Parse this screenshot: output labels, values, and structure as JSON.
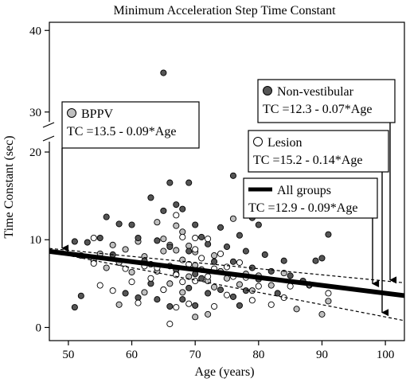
{
  "chart_data": {
    "type": "scatter",
    "title": "Minimum Acceleration Step Time Constant",
    "xlabel": "Age (years)",
    "ylabel": "Time Constant (sec)",
    "xlim": [
      47,
      103
    ],
    "ylim": [
      -1.5,
      41
    ],
    "axis_break": {
      "lower_max": 21,
      "upper_min": 29
    },
    "x_ticks": [
      50,
      60,
      70,
      80,
      90,
      100
    ],
    "x_tick_labels": [
      "50",
      "60",
      "70",
      "80",
      "90",
      "100"
    ],
    "y_ticks": [
      0,
      10,
      20,
      30,
      40
    ],
    "y_tick_labels": [
      "0",
      "10",
      "20",
      "30",
      "40"
    ],
    "grid": false,
    "series": [
      {
        "name": "BPPV",
        "marker": "circle",
        "fill": "#bfbfbf",
        "points": [
          [
            52,
            8.2
          ],
          [
            54,
            7.6
          ],
          [
            55,
            8.4
          ],
          [
            56,
            6.8
          ],
          [
            57,
            9.4
          ],
          [
            58,
            7.4
          ],
          [
            59,
            8.9
          ],
          [
            60,
            6.3
          ],
          [
            61,
            9.8
          ],
          [
            62,
            8.1
          ],
          [
            63,
            7.2
          ],
          [
            64,
            12.0
          ],
          [
            64,
            6.4
          ],
          [
            65,
            10.1
          ],
          [
            65,
            8.7
          ],
          [
            66,
            9.4
          ],
          [
            66,
            7.0
          ],
          [
            67,
            11.6
          ],
          [
            67,
            8.8
          ],
          [
            67,
            6.1
          ],
          [
            68,
            10.9
          ],
          [
            68,
            7.7
          ],
          [
            69,
            9.3
          ],
          [
            69,
            5.8
          ],
          [
            70,
            8.6
          ],
          [
            70,
            7.1
          ],
          [
            71,
            6.6
          ],
          [
            72,
            5.3
          ],
          [
            73,
            4.6
          ],
          [
            73,
            8.2
          ],
          [
            74,
            6.4
          ],
          [
            75,
            5.6
          ],
          [
            76,
            12.4
          ],
          [
            77,
            4.9
          ],
          [
            78,
            6.1
          ],
          [
            79,
            4.2
          ],
          [
            80,
            5.9
          ],
          [
            82,
            4.8
          ],
          [
            84,
            6.2
          ],
          [
            86,
            2.1
          ],
          [
            88,
            4.8
          ],
          [
            90,
            1.5
          ],
          [
            91,
            3.0
          ],
          [
            70,
            1.2
          ],
          [
            72,
            1.5
          ],
          [
            66,
            5.0
          ],
          [
            68,
            4.0
          ],
          [
            62,
            4.0
          ],
          [
            58,
            2.6
          ]
        ]
      },
      {
        "name": "Non-vestibular",
        "marker": "circle",
        "fill": "#555555",
        "points": [
          [
            65,
            34.8
          ],
          [
            51,
            9.8
          ],
          [
            51,
            2.3
          ],
          [
            52,
            3.6
          ],
          [
            53,
            9.7
          ],
          [
            55,
            10.2
          ],
          [
            56,
            12.6
          ],
          [
            57,
            8.3
          ],
          [
            58,
            11.8
          ],
          [
            59,
            3.9
          ],
          [
            60,
            11.7
          ],
          [
            61,
            10.2
          ],
          [
            61,
            3.4
          ],
          [
            62,
            7.6
          ],
          [
            63,
            14.8
          ],
          [
            63,
            5.0
          ],
          [
            64,
            9.9
          ],
          [
            64,
            3.2
          ],
          [
            65,
            13.3
          ],
          [
            65,
            4.3
          ],
          [
            66,
            16.5
          ],
          [
            66,
            9.2
          ],
          [
            66,
            2.4
          ],
          [
            67,
            14.0
          ],
          [
            67,
            6.6
          ],
          [
            68,
            13.5
          ],
          [
            68,
            3.2
          ],
          [
            69,
            16.5
          ],
          [
            69,
            8.7
          ],
          [
            69,
            4.5
          ],
          [
            70,
            11.7
          ],
          [
            70,
            6.1
          ],
          [
            70,
            2.5
          ],
          [
            71,
            10.3
          ],
          [
            71,
            5.6
          ],
          [
            72,
            9.5
          ],
          [
            72,
            3.9
          ],
          [
            73,
            7.5
          ],
          [
            74,
            11.4
          ],
          [
            74,
            4.3
          ],
          [
            75,
            9.2
          ],
          [
            76,
            17.3
          ],
          [
            76,
            7.5
          ],
          [
            76,
            3.5
          ],
          [
            77,
            10.5
          ],
          [
            77,
            2.5
          ],
          [
            78,
            8.7
          ],
          [
            78,
            4.2
          ],
          [
            79,
            12.5
          ],
          [
            79,
            6.8
          ],
          [
            80,
            11.7
          ],
          [
            80,
            5.5
          ],
          [
            81,
            8.3
          ],
          [
            82,
            6.4
          ],
          [
            83,
            3.9
          ],
          [
            84,
            7.6
          ],
          [
            85,
            5.9
          ],
          [
            87,
            5.3
          ],
          [
            89,
            7.6
          ],
          [
            90,
            7.9
          ],
          [
            91,
            10.6
          ]
        ]
      },
      {
        "name": "Lesion",
        "marker": "circle",
        "fill": "#ffffff",
        "points": [
          [
            54,
            10.2
          ],
          [
            54,
            7.3
          ],
          [
            55,
            4.8
          ],
          [
            57,
            4.2
          ],
          [
            59,
            6.7
          ],
          [
            60,
            5.2
          ],
          [
            61,
            2.8
          ],
          [
            62,
            7.0
          ],
          [
            63,
            5.6
          ],
          [
            64,
            6.8
          ],
          [
            65,
            4.3
          ],
          [
            66,
            0.4
          ],
          [
            67,
            12.8
          ],
          [
            67,
            6.0
          ],
          [
            67,
            2.3
          ],
          [
            68,
            10.3
          ],
          [
            68,
            5.2
          ],
          [
            69,
            7.2
          ],
          [
            69,
            2.7
          ],
          [
            70,
            10.2
          ],
          [
            70,
            8.9
          ],
          [
            70,
            5.3
          ],
          [
            71,
            7.9
          ],
          [
            72,
            10.1
          ],
          [
            72,
            5.8
          ],
          [
            73,
            6.7
          ],
          [
            73,
            2.4
          ],
          [
            74,
            8.4
          ],
          [
            75,
            6.9
          ],
          [
            75,
            3.7
          ],
          [
            76,
            5.8
          ],
          [
            77,
            7.4
          ],
          [
            78,
            5.7
          ],
          [
            79,
            3.1
          ],
          [
            80,
            4.7
          ],
          [
            82,
            2.6
          ],
          [
            84,
            3.4
          ],
          [
            85,
            4.7
          ],
          [
            88,
            4.9
          ],
          [
            91,
            3.9
          ]
        ]
      }
    ],
    "fit_lines": [
      {
        "name": "All groups",
        "equation": "TC =12.9 - 0.09*Age",
        "intercept": 12.9,
        "slope": -0.09,
        "style": "solid-thick"
      },
      {
        "name": "Non-vestibular",
        "equation": "TC =12.3 - 0.07*Age",
        "intercept": 12.3,
        "slope": -0.07,
        "style": "dashed"
      },
      {
        "name": "Lesion",
        "equation": "TC =15.2 - 0.14*Age",
        "intercept": 15.2,
        "slope": -0.14,
        "style": "dashed"
      }
    ],
    "annotations": [
      {
        "id": "bppv",
        "label": "BPPV",
        "equation": "TC =13.5 - 0.09*Age",
        "symbol_fill": "#bfbfbf",
        "symbol": "circle"
      },
      {
        "id": "nonvest",
        "label": "Non-vestibular",
        "equation": "TC =12.3 - 0.07*Age",
        "symbol_fill": "#555555",
        "symbol": "circle"
      },
      {
        "id": "lesion",
        "label": "Lesion",
        "equation": "TC =15.2 - 0.14*Age",
        "symbol_fill": "#ffffff",
        "symbol": "circle"
      },
      {
        "id": "all",
        "label": "All groups",
        "equation": "TC =12.9 - 0.09*Age",
        "symbol": "thick-line"
      }
    ]
  }
}
